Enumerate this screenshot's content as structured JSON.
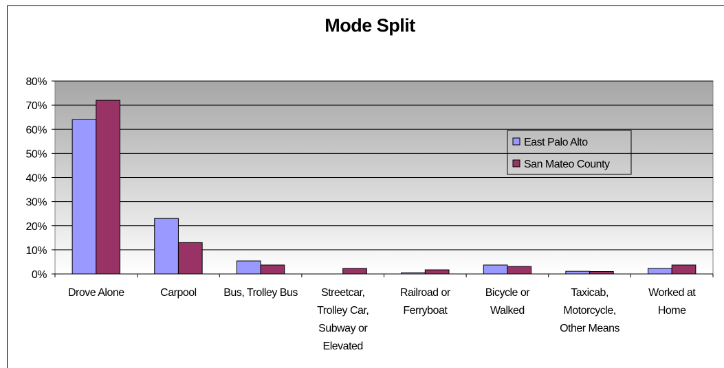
{
  "chart_data": {
    "type": "bar",
    "title": "Mode Split",
    "categories": [
      "Drove Alone",
      "Carpool",
      "Bus, Trolley Bus",
      "Streetcar, Trolley Car, Subway or Elevated",
      "Railroad or Ferryboat",
      "Bicycle or Walked",
      "Taxicab, Motorcycle, Other Means",
      "Worked at Home"
    ],
    "series": [
      {
        "name": "East Palo Alto",
        "color": "#9999ff",
        "values": [
          64,
          23,
          5.4,
          0,
          0.5,
          3.7,
          1.1,
          2.3
        ]
      },
      {
        "name": "San Mateo County",
        "color": "#993366",
        "values": [
          72,
          13,
          3.7,
          2.3,
          1.7,
          3.1,
          1.0,
          3.7
        ]
      }
    ],
    "ylim": [
      0,
      80
    ],
    "yticks": [
      {
        "value": 0,
        "label": "0%"
      },
      {
        "value": 10,
        "label": "10%"
      },
      {
        "value": 20,
        "label": "20%"
      },
      {
        "value": 30,
        "label": "30%"
      },
      {
        "value": 40,
        "label": "40%"
      },
      {
        "value": 50,
        "label": "50%"
      },
      {
        "value": 60,
        "label": "60%"
      },
      {
        "value": 70,
        "label": "70%"
      },
      {
        "value": 80,
        "label": "80%"
      }
    ],
    "grid": true,
    "legend": "right"
  }
}
